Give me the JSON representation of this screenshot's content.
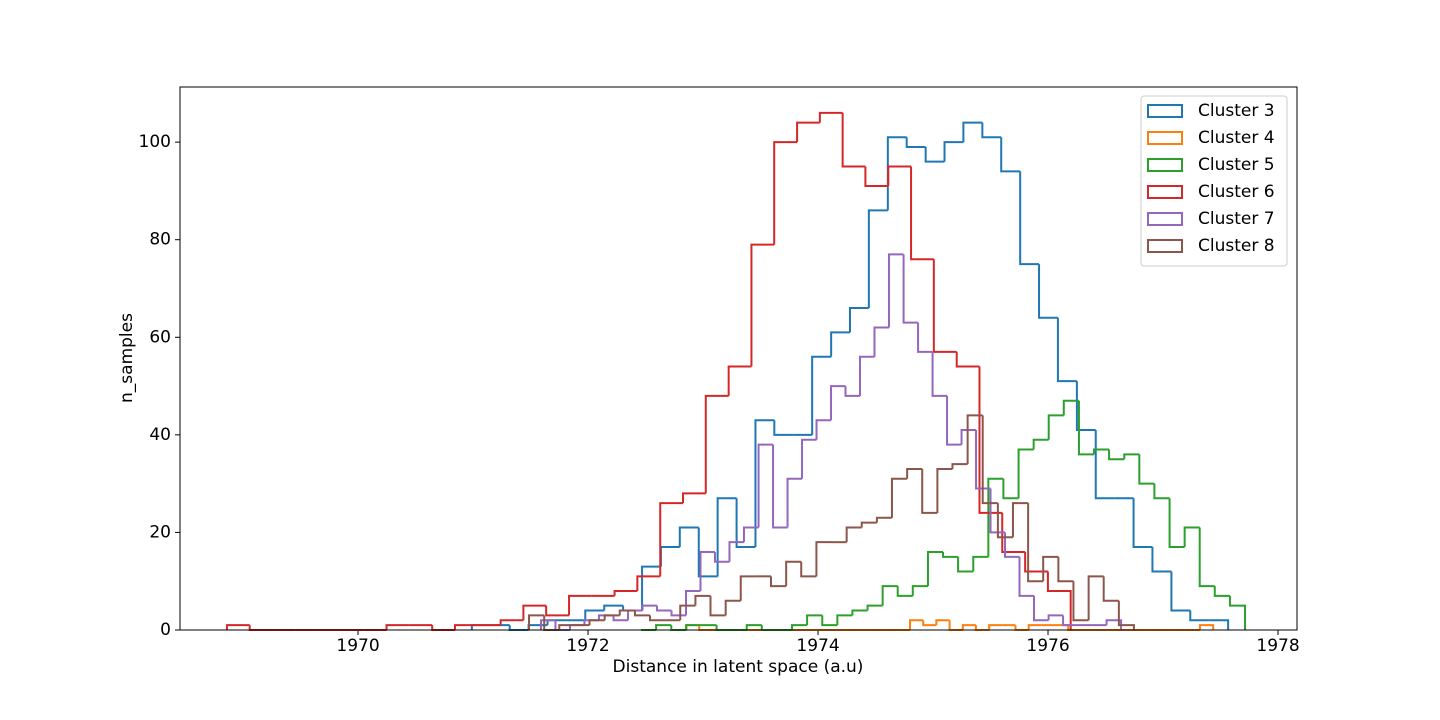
{
  "chart_data": {
    "type": "histogram",
    "histtype": "step",
    "xlabel": "Distance in latent space (a.u)",
    "ylabel": "n_samples",
    "xlim": [
      1968.452,
      1978.165
    ],
    "ylim": [
      0,
      111.3
    ],
    "xticks": [
      1970,
      1972,
      1974,
      1976,
      1978
    ],
    "yticks": [
      0,
      20,
      40,
      60,
      80,
      100
    ],
    "grid": false,
    "legend": "upper right",
    "series": [
      {
        "name": "Cluster 3",
        "color": "#1f77b4",
        "bins": [
          1970.99,
          1971.154,
          1971.319,
          1971.483,
          1971.648,
          1971.812,
          1971.976,
          1972.141,
          1972.305,
          1972.47,
          1972.634,
          1972.798,
          1972.963,
          1973.127,
          1973.292,
          1973.456,
          1973.62,
          1973.785,
          1973.949,
          1974.114,
          1974.278,
          1974.442,
          1974.607,
          1974.771,
          1974.936,
          1975.1,
          1975.264,
          1975.429,
          1975.593,
          1975.758,
          1975.922,
          1976.086,
          1976.251,
          1976.415,
          1976.58,
          1976.744,
          1976.908,
          1977.073,
          1977.237,
          1977.402,
          1977.566
        ],
        "values": [
          1,
          1,
          0,
          1,
          2,
          2,
          4,
          5,
          4,
          13,
          17,
          21,
          11,
          27,
          17,
          43,
          40,
          40,
          56,
          61,
          66,
          86,
          101,
          99,
          96,
          100,
          104,
          101,
          94,
          75,
          64,
          51,
          41,
          27,
          27,
          17,
          12,
          4,
          2,
          2
        ]
      },
      {
        "name": "Cluster 4",
        "color": "#ff7f0e",
        "bins": [
          1972.852,
          1972.967,
          1973.081,
          1973.196,
          1973.31,
          1973.425,
          1973.54,
          1973.654,
          1973.769,
          1973.883,
          1973.998,
          1974.113,
          1974.227,
          1974.342,
          1974.456,
          1974.571,
          1974.686,
          1974.8,
          1974.915,
          1975.029,
          1975.144,
          1975.259,
          1975.373,
          1975.488,
          1975.602,
          1975.717,
          1975.832,
          1975.946,
          1976.061,
          1976.175,
          1976.29,
          1976.405,
          1976.519,
          1976.634,
          1976.748,
          1976.863,
          1976.978,
          1977.092,
          1977.207,
          1977.321,
          1977.436
        ],
        "values": [
          1,
          0,
          0,
          0,
          0,
          0,
          0,
          0,
          0,
          0,
          0,
          0,
          0,
          0,
          0,
          0,
          0,
          2,
          1,
          2,
          0,
          1,
          0,
          1,
          1,
          0,
          1,
          1,
          1,
          0,
          0,
          0,
          0,
          0,
          0,
          0,
          0,
          0,
          0,
          1
        ]
      },
      {
        "name": "Cluster 5",
        "color": "#2ca02c",
        "bins": [
          1972.461,
          1972.592,
          1972.724,
          1972.855,
          1972.986,
          1973.118,
          1973.249,
          1973.38,
          1973.511,
          1973.643,
          1973.774,
          1973.905,
          1974.037,
          1974.168,
          1974.299,
          1974.431,
          1974.562,
          1974.693,
          1974.824,
          1974.956,
          1975.087,
          1975.218,
          1975.35,
          1975.481,
          1975.612,
          1975.744,
          1975.875,
          1976.006,
          1976.137,
          1976.269,
          1976.4,
          1976.531,
          1976.663,
          1976.794,
          1976.925,
          1977.057,
          1977.188,
          1977.319,
          1977.45,
          1977.582,
          1977.713
        ],
        "values": [
          0,
          1,
          0,
          1,
          1,
          0,
          0,
          1,
          0,
          0,
          1,
          3,
          1,
          3,
          4,
          5,
          9,
          7,
          9,
          16,
          15,
          12,
          15,
          31,
          27,
          37,
          39,
          44,
          47,
          36,
          37,
          35,
          36,
          30,
          27,
          17,
          21,
          9,
          7,
          5
        ]
      },
      {
        "name": "Cluster 6",
        "color": "#d62728",
        "bins": [
          1968.86,
          1969.058,
          1969.257,
          1969.455,
          1969.653,
          1969.852,
          1970.05,
          1970.248,
          1970.446,
          1970.645,
          1970.843,
          1971.041,
          1971.24,
          1971.438,
          1971.636,
          1971.835,
          1972.033,
          1972.231,
          1972.429,
          1972.628,
          1972.826,
          1973.024,
          1973.223,
          1973.421,
          1973.619,
          1973.818,
          1974.016,
          1974.214,
          1974.412,
          1974.611,
          1974.809,
          1975.007,
          1975.206,
          1975.404,
          1975.602,
          1975.801,
          1975.999,
          1976.197
        ],
        "values": [
          1,
          0,
          0,
          0,
          0,
          0,
          0,
          1,
          1,
          0,
          1,
          1,
          2,
          5,
          3,
          7,
          7,
          8,
          11,
          26,
          28,
          48,
          54,
          79,
          100,
          104,
          106,
          95,
          91,
          95,
          76,
          57,
          54,
          24,
          16,
          12,
          8
        ]
      },
      {
        "name": "Cluster 7",
        "color": "#9467bd",
        "bins": [
          1971.591,
          1971.717,
          1971.843,
          1971.969,
          1972.095,
          1972.222,
          1972.348,
          1972.474,
          1972.6,
          1972.726,
          1972.852,
          1972.978,
          1973.104,
          1973.23,
          1973.356,
          1973.483,
          1973.609,
          1973.735,
          1973.861,
          1973.987,
          1974.113,
          1974.239,
          1974.365,
          1974.491,
          1974.617,
          1974.744,
          1974.87,
          1974.996,
          1975.122,
          1975.248,
          1975.374,
          1975.5,
          1975.626,
          1975.752,
          1975.878,
          1976.005,
          1976.131,
          1976.257,
          1976.383,
          1976.509,
          1976.635
        ],
        "values": [
          2,
          0,
          1,
          2,
          3,
          2,
          4,
          5,
          4,
          3,
          8,
          16,
          14,
          18,
          21,
          38,
          21,
          31,
          39,
          43,
          50,
          48,
          56,
          62,
          77,
          63,
          57,
          48,
          38,
          41,
          29,
          20,
          15,
          7,
          2,
          3,
          1,
          1,
          1,
          2
        ]
      },
      {
        "name": "Cluster 8",
        "color": "#8c564b",
        "bins": [
          1971.487,
          1971.619,
          1971.75,
          1971.882,
          1972.013,
          1972.145,
          1972.276,
          1972.408,
          1972.539,
          1972.671,
          1972.802,
          1972.934,
          1973.065,
          1973.197,
          1973.328,
          1973.46,
          1973.591,
          1973.723,
          1973.854,
          1973.986,
          1974.117,
          1974.249,
          1974.38,
          1974.512,
          1974.643,
          1974.775,
          1974.906,
          1975.038,
          1975.169,
          1975.301,
          1975.432,
          1975.564,
          1975.695,
          1975.827,
          1975.958,
          1976.09,
          1976.221,
          1976.353,
          1976.484,
          1976.616,
          1976.747
        ],
        "values": [
          3,
          0,
          1,
          1,
          2,
          3,
          4,
          3,
          2,
          2,
          5,
          7,
          3,
          6,
          11,
          11,
          9,
          14,
          11,
          18,
          18,
          21,
          22,
          23,
          31,
          33,
          24,
          33,
          34,
          44,
          26,
          19,
          26,
          10,
          15,
          10,
          2,
          11,
          6,
          1
        ]
      }
    ]
  }
}
